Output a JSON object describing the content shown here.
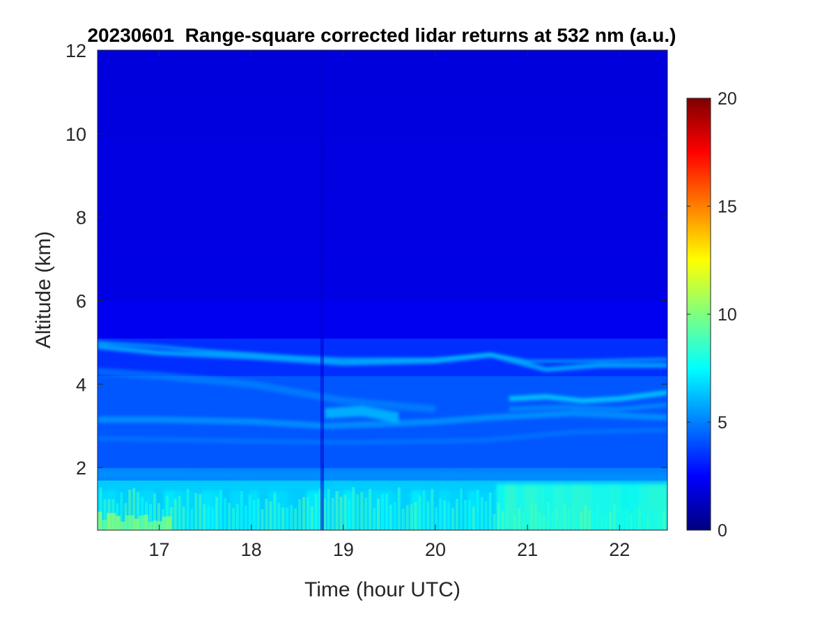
{
  "chart_data": {
    "type": "heatmap",
    "title": "20230601  Range-square corrected lidar returns at 532 nm (a.u.)",
    "xlabel": "Time (hour UTC)",
    "ylabel": "Altitude (km)",
    "xlim": [
      16.33,
      22.52
    ],
    "ylim": [
      0.5,
      12
    ],
    "xticks": [
      17,
      18,
      19,
      20,
      21,
      22
    ],
    "yticks": [
      2,
      4,
      6,
      8,
      10,
      12
    ],
    "xtick_labels": [
      "17",
      "18",
      "19",
      "20",
      "21",
      "22"
    ],
    "ytick_labels": [
      "2",
      "4",
      "6",
      "8",
      "10",
      "12"
    ],
    "colorbar": {
      "colormap": "jet",
      "clim": [
        0,
        20
      ],
      "ticks": [
        0,
        5,
        10,
        15,
        20
      ],
      "tick_labels": [
        "0",
        "5",
        "10",
        "15",
        "20"
      ]
    },
    "features": [
      {
        "name": "boundary-layer",
        "description": "high returns near surface",
        "altitude_km": [
          0.5,
          1.7
        ],
        "value": [
          7,
          9
        ]
      },
      {
        "name": "aerosol-layer-upper",
        "description": "elevated layer top",
        "time_h": [
          16.33,
          22.52
        ],
        "altitude_km": [
          4.3,
          5.1
        ],
        "value": [
          5,
          6
        ]
      },
      {
        "name": "aerosol-layer-mid",
        "altitude_km": [
          3.0,
          3.9
        ],
        "value": [
          5,
          7
        ]
      },
      {
        "name": "free-troposphere",
        "altitude_km": [
          6,
          12
        ],
        "value": [
          1.5,
          2.5
        ]
      }
    ]
  }
}
